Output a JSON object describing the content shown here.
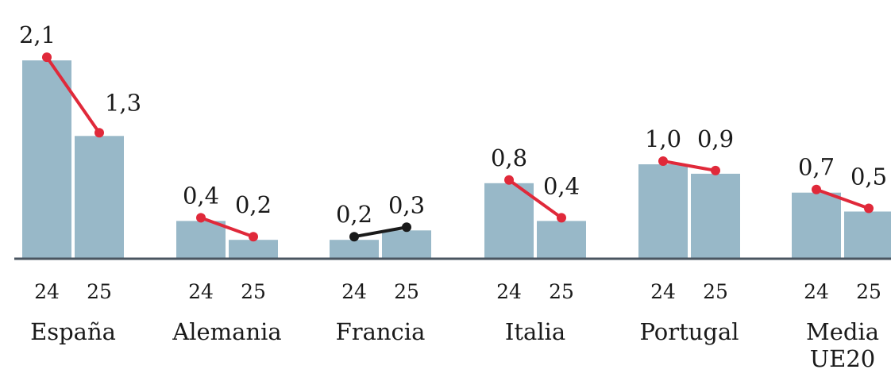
{
  "chart_data": {
    "type": "bar",
    "title": "",
    "xlabel": "",
    "ylabel": "",
    "ylim": [
      0,
      2.25
    ],
    "grid": false,
    "decimal_separator": ",",
    "categories": [
      "España",
      "Alemania",
      "Francia",
      "Italia",
      "Portugal",
      "Media UE20"
    ],
    "series": [
      {
        "name": "24",
        "values": [
          2.1,
          0.4,
          0.2,
          0.8,
          1.0,
          0.7
        ]
      },
      {
        "name": "25",
        "values": [
          1.3,
          0.2,
          0.3,
          0.4,
          0.9,
          0.5
        ]
      }
    ],
    "value_labels": [
      [
        "2,1",
        "1,3"
      ],
      [
        "0,4",
        "0,2"
      ],
      [
        "0,2",
        "0,3"
      ],
      [
        "0,8",
        "0,4"
      ],
      [
        "1,0",
        "0,9"
      ],
      [
        "0,7",
        "0,5"
      ]
    ],
    "trend": [
      "down",
      "down",
      "up",
      "down",
      "down",
      "down"
    ],
    "colors": {
      "bar": "#98b8c8",
      "decrease": "#e0293a",
      "increase": "#1a1a1a",
      "axis": "#4a5560",
      "text": "#1a1a1a"
    }
  }
}
